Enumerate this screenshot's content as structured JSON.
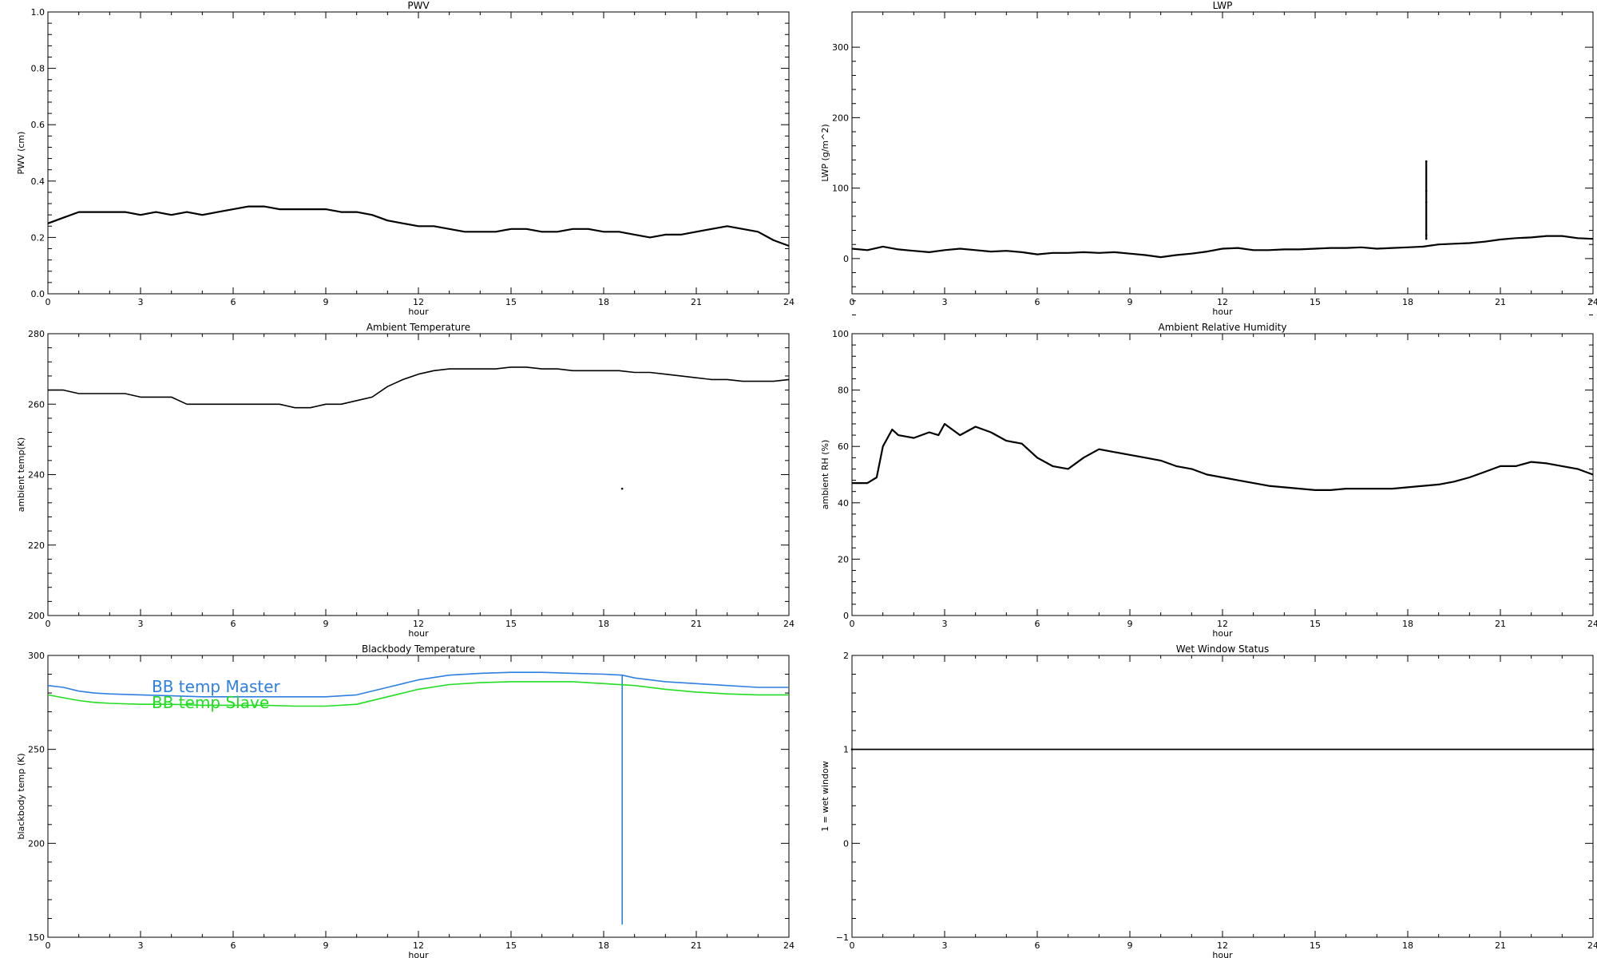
{
  "chart_data": [
    {
      "type": "scatter",
      "title": "PWV",
      "xlabel": "hour",
      "ylabel": "PWV (cm)",
      "xlim": [
        0,
        24
      ],
      "ylim": [
        0.0,
        1.0
      ],
      "xticks": [
        "0",
        "3",
        "6",
        "9",
        "12",
        "15",
        "18",
        "21",
        "24"
      ],
      "yticks": [
        "0.0",
        "0.2",
        "0.4",
        "0.6",
        "0.8",
        "1.0"
      ],
      "series": [
        {
          "color": "#000000",
          "x": [
            0,
            0.5,
            1,
            1.5,
            2,
            2.5,
            3,
            3.5,
            4,
            4.5,
            5,
            5.5,
            6,
            6.5,
            7,
            7.5,
            8,
            8.5,
            9,
            9.5,
            10,
            10.5,
            11,
            11.5,
            12,
            12.5,
            13,
            13.5,
            14,
            14.5,
            15,
            15.5,
            16,
            16.5,
            17,
            17.5,
            18,
            18.5,
            19,
            19.5,
            20,
            20.5,
            21,
            21.5,
            22,
            22.5,
            23,
            23.5,
            24
          ],
          "y": [
            0.25,
            0.27,
            0.29,
            0.29,
            0.29,
            0.29,
            0.28,
            0.29,
            0.28,
            0.29,
            0.28,
            0.29,
            0.3,
            0.31,
            0.31,
            0.3,
            0.3,
            0.3,
            0.3,
            0.29,
            0.29,
            0.28,
            0.26,
            0.25,
            0.24,
            0.24,
            0.23,
            0.22,
            0.22,
            0.22,
            0.23,
            0.23,
            0.22,
            0.22,
            0.23,
            0.23,
            0.22,
            0.22,
            0.21,
            0.2,
            0.21,
            0.21,
            0.22,
            0.23,
            0.24,
            0.23,
            0.22,
            0.19,
            0.17
          ]
        }
      ]
    },
    {
      "type": "scatter",
      "title": "LWP",
      "xlabel": "hour",
      "ylabel": "LWP (g/m^2)",
      "xlim": [
        0,
        24
      ],
      "ylim": [
        -50,
        350
      ],
      "xticks": [
        "0",
        "3",
        "6",
        "9",
        "12",
        "15",
        "18",
        "21",
        "24"
      ],
      "yticks": [
        "0",
        "100",
        "200",
        "300"
      ],
      "series": [
        {
          "color": "#000000",
          "x": [
            0,
            0.5,
            1,
            1.5,
            2,
            2.5,
            3,
            3.5,
            4,
            4.5,
            5,
            5.5,
            6,
            6.5,
            7,
            7.5,
            8,
            8.5,
            9,
            9.5,
            10,
            10.5,
            11,
            11.5,
            12,
            12.5,
            13,
            13.5,
            14,
            14.5,
            15,
            15.5,
            16,
            16.5,
            17,
            17.5,
            18,
            18.5,
            19,
            19.5,
            20,
            20.5,
            21,
            21.5,
            22,
            22.5,
            23,
            23.5,
            24
          ],
          "y": [
            14,
            12,
            17,
            13,
            11,
            9,
            12,
            14,
            12,
            10,
            11,
            9,
            6,
            8,
            8,
            9,
            8,
            9,
            7,
            5,
            2,
            5,
            7,
            10,
            14,
            15,
            12,
            12,
            13,
            13,
            14,
            15,
            15,
            16,
            14,
            15,
            16,
            17,
            20,
            21,
            22,
            24,
            27,
            29,
            30,
            32,
            32,
            29,
            28
          ]
        },
        {
          "color": "#000000",
          "x": [
            18.6,
            18.6,
            18.6,
            18.6,
            18.6
          ],
          "y": [
            138,
            96,
            80,
            33,
            28
          ]
        }
      ]
    },
    {
      "type": "line",
      "title": "Ambient Temperature",
      "xlabel": "hour",
      "ylabel": "ambient temp(K)",
      "xlim": [
        0,
        24
      ],
      "ylim": [
        200,
        280
      ],
      "xticks": [
        "0",
        "3",
        "6",
        "9",
        "12",
        "15",
        "18",
        "21",
        "24"
      ],
      "yticks": [
        "200",
        "220",
        "240",
        "260",
        "280"
      ],
      "series": [
        {
          "color": "#000000",
          "x": [
            0,
            0.5,
            1,
            1.5,
            2,
            2.5,
            3,
            3.5,
            4,
            4.5,
            5,
            5.5,
            6,
            6.5,
            7,
            7.5,
            8,
            8.5,
            9,
            9.5,
            10,
            10.5,
            11,
            11.5,
            12,
            12.5,
            13,
            13.5,
            14,
            14.5,
            15,
            15.5,
            16,
            16.5,
            17,
            17.5,
            18,
            18.5,
            19,
            19.5,
            20,
            20.5,
            21,
            21.5,
            22,
            22.5,
            23,
            23.5,
            24
          ],
          "y": [
            264,
            264,
            263,
            263,
            263,
            263,
            262,
            262,
            262,
            260,
            260,
            260,
            260,
            260,
            260,
            260,
            259,
            259,
            260,
            260,
            261,
            262,
            265,
            267,
            268.5,
            269.5,
            270,
            270,
            270,
            270,
            270.5,
            270.5,
            270,
            270,
            269.5,
            269.5,
            269.5,
            269.5,
            269,
            269,
            268.5,
            268,
            267.5,
            267,
            267,
            266.5,
            266.5,
            266.5,
            267
          ]
        },
        {
          "color": "#000000",
          "x": [
            18.6
          ],
          "y": [
            236
          ]
        }
      ]
    },
    {
      "type": "scatter",
      "title": "Ambient Relative Humidity",
      "xlabel": "hour",
      "ylabel": "ambient RH (%)",
      "xlim": [
        0,
        24
      ],
      "ylim": [
        0,
        100
      ],
      "xticks": [
        "0",
        "3",
        "6",
        "9",
        "12",
        "15",
        "18",
        "21",
        "24"
      ],
      "yticks": [
        "0",
        "20",
        "40",
        "60",
        "80",
        "100"
      ],
      "series": [
        {
          "color": "#000000",
          "x": [
            0,
            0.5,
            0.8,
            1,
            1.3,
            1.5,
            2,
            2.5,
            2.8,
            3,
            3.5,
            4,
            4.5,
            5,
            5.5,
            6,
            6.5,
            7,
            7.5,
            8,
            8.5,
            9,
            9.5,
            10,
            10.5,
            11,
            11.5,
            12,
            12.5,
            13,
            13.5,
            14,
            14.5,
            15,
            15.5,
            16,
            16.5,
            17,
            17.5,
            18,
            18.5,
            19,
            19.5,
            20,
            20.5,
            21,
            21.5,
            22,
            22.5,
            23,
            23.5,
            24
          ],
          "y": [
            47,
            47,
            49,
            60,
            66,
            64,
            63,
            65,
            64,
            68,
            64,
            67,
            65,
            62,
            61,
            56,
            53,
            52,
            56,
            59,
            58,
            57,
            56,
            55,
            53,
            52,
            50,
            49,
            48,
            47,
            46,
            45.5,
            45,
            44.5,
            44.5,
            45,
            45,
            45,
            45,
            45.5,
            46,
            46.5,
            47.5,
            49,
            51,
            53,
            53,
            54.5,
            54,
            53,
            52,
            50
          ]
        }
      ]
    },
    {
      "type": "line",
      "title": "Blackbody Temperature",
      "xlabel": "hour",
      "ylabel": "blackbody temp (K)",
      "xlim": [
        0,
        24
      ],
      "ylim": [
        150,
        300
      ],
      "xticks": [
        "0",
        "3",
        "6",
        "9",
        "12",
        "15",
        "18",
        "21",
        "24"
      ],
      "yticks": [
        "150",
        "200",
        "250",
        "300"
      ],
      "legend": "top-left",
      "series": [
        {
          "name": "BB temp Master",
          "color": "#2f7fe0",
          "x": [
            0,
            0.5,
            1,
            1.5,
            2,
            3,
            4,
            5,
            6,
            7,
            8,
            9,
            10,
            11,
            12,
            13,
            14,
            15,
            16,
            17,
            18,
            18.6,
            18.6,
            18.6,
            19,
            20,
            21,
            22,
            23,
            24
          ],
          "y": [
            284,
            283,
            281,
            280,
            279.5,
            279,
            278.5,
            278,
            278,
            278,
            278,
            278,
            279,
            283,
            287,
            289.5,
            290.5,
            291,
            291,
            290.5,
            290,
            289.5,
            157,
            289.5,
            288,
            286,
            285,
            284,
            283,
            283
          ]
        },
        {
          "name": "BB temp Slave",
          "color": "#22dd22",
          "x": [
            0,
            0.5,
            1,
            1.5,
            2,
            3,
            4,
            5,
            6,
            7,
            8,
            9,
            10,
            11,
            12,
            13,
            14,
            15,
            16,
            17,
            18,
            19,
            20,
            21,
            22,
            23,
            24
          ],
          "y": [
            279,
            277.5,
            276,
            275,
            274.5,
            274,
            274,
            273.5,
            273.5,
            273.5,
            273,
            273,
            274,
            278,
            282,
            284.5,
            285.5,
            286,
            286,
            286,
            285,
            284,
            282,
            280.5,
            279.5,
            279,
            279
          ]
        }
      ]
    },
    {
      "type": "line",
      "title": "Wet Window Status",
      "xlabel": "hour",
      "ylabel": "1 = wet window",
      "xlim": [
        0,
        24
      ],
      "ylim": [
        -1,
        2
      ],
      "xticks": [
        "0",
        "3",
        "6",
        "9",
        "12",
        "15",
        "18",
        "21",
        "24"
      ],
      "yticks": [
        "−1",
        "0",
        "1",
        "2"
      ],
      "series": [
        {
          "color": "#000000",
          "x": [
            0,
            24
          ],
          "y": [
            1,
            1
          ]
        }
      ]
    }
  ]
}
